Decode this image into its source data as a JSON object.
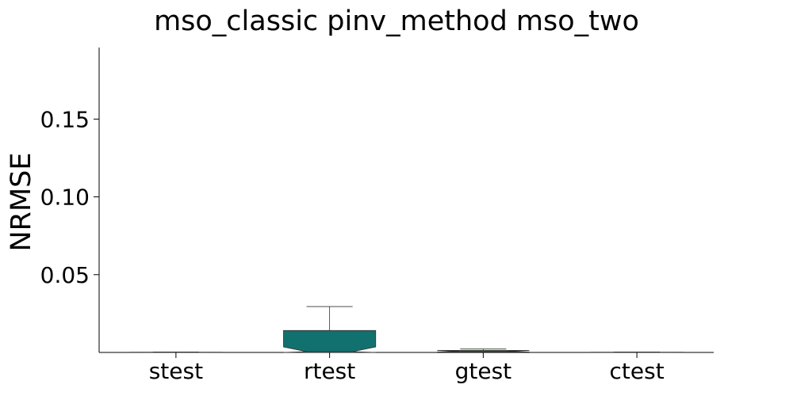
{
  "chart_data": {
    "type": "box",
    "title": "mso_classic pinv_method mso_two",
    "xlabel": "",
    "ylabel": "NRMSE",
    "categories": [
      "stest",
      "rtest",
      "gtest",
      "ctest"
    ],
    "yticks": [
      "0.05",
      "0.10",
      "0.15"
    ],
    "ylim": [
      0,
      0.196
    ],
    "grid": false,
    "legend": "none",
    "boxes": [
      {
        "category": "stest",
        "whisker_low": 0.0,
        "q1": 0.0,
        "median": 0.0,
        "q3": 0.0002,
        "whisker_high": 0.0003,
        "color": "#3a2f6b"
      },
      {
        "category": "rtest",
        "whisker_low": 0.0,
        "q1": 0.0,
        "median": 0.0005,
        "q3": 0.0141,
        "whisker_high": 0.0295,
        "color": "#11716f"
      },
      {
        "category": "gtest",
        "whisker_low": 0.0,
        "q1": 0.0003,
        "median": 0.0008,
        "q3": 0.0013,
        "whisker_high": 0.0022,
        "color": "#8fd18a"
      },
      {
        "category": "ctest",
        "whisker_low": 0.0,
        "q1": 0.0,
        "median": 0.0,
        "q3": 0.0002,
        "whisker_high": 0.0003,
        "color": "#3a2f6b"
      }
    ]
  }
}
